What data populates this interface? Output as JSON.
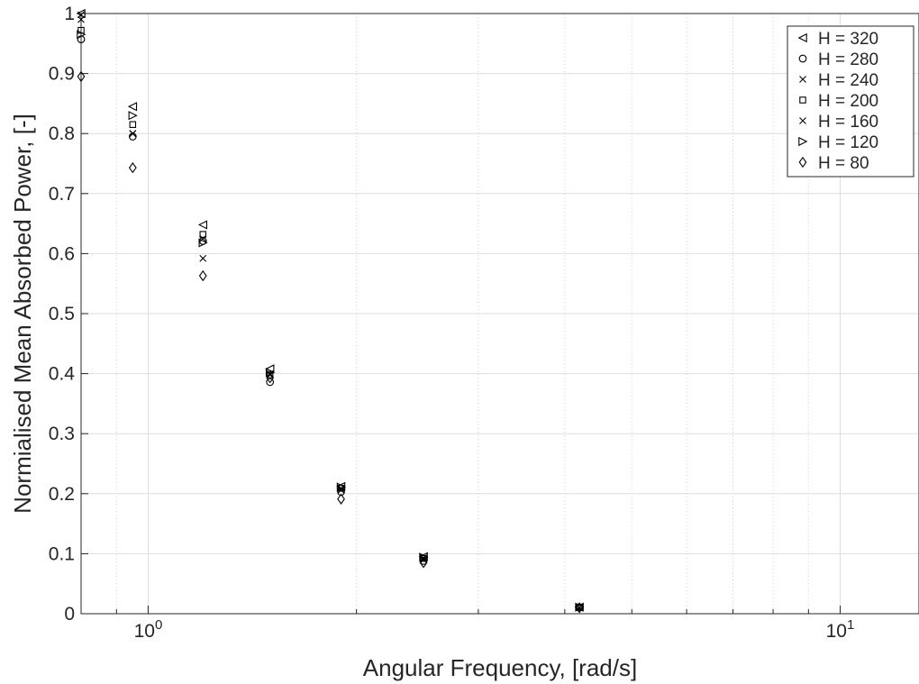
{
  "chart_data": {
    "type": "scatter",
    "title": "",
    "xlabel": "Angular Frequency, [rad/s]",
    "ylabel": "Normialised Mean Absorbed Power, [-]",
    "xscale": "log",
    "xlim": [
      0.8,
      13.0
    ],
    "ylim": [
      0,
      1
    ],
    "grid": true,
    "legend_position": "top-right",
    "x_ticks": [
      {
        "value": 1,
        "base": "10",
        "exp": "0"
      },
      {
        "value": 10,
        "base": "10",
        "exp": "1"
      }
    ],
    "y_ticks": [
      {
        "value": 0,
        "label": "0"
      },
      {
        "value": 0.1,
        "label": "0.1"
      },
      {
        "value": 0.2,
        "label": "0.2"
      },
      {
        "value": 0.3,
        "label": "0.3"
      },
      {
        "value": 0.4,
        "label": "0.4"
      },
      {
        "value": 0.5,
        "label": "0.5"
      },
      {
        "value": 0.6,
        "label": "0.6"
      },
      {
        "value": 0.7,
        "label": "0.7"
      },
      {
        "value": 0.8,
        "label": "0.8"
      },
      {
        "value": 0.9,
        "label": "0.9"
      },
      {
        "value": 1,
        "label": "1"
      }
    ],
    "x": [
      0.8,
      0.95,
      1.2,
      1.5,
      1.9,
      2.5,
      4.2
    ],
    "series": [
      {
        "name": "H = 320",
        "marker": "triangle-left",
        "values": [
          1.0,
          0.845,
          0.648,
          0.408,
          0.212,
          0.095,
          0.011
        ]
      },
      {
        "name": "H = 280",
        "marker": "circle",
        "values": [
          0.957,
          0.795,
          0.621,
          0.386,
          0.203,
          0.088,
          0.01
        ]
      },
      {
        "name": "H = 240",
        "marker": "x",
        "values": [
          0.99,
          0.8,
          0.592,
          0.398,
          0.206,
          0.09,
          0.01
        ]
      },
      {
        "name": "H = 200",
        "marker": "square",
        "values": [
          0.972,
          0.815,
          0.632,
          0.398,
          0.209,
          0.092,
          0.011
        ]
      },
      {
        "name": "H = 160",
        "marker": "x",
        "values": [
          0.998,
          0.8,
          0.625,
          0.4,
          0.209,
          0.093,
          0.01
        ]
      },
      {
        "name": "H = 120",
        "marker": "triangle-right",
        "values": [
          0.965,
          0.83,
          0.618,
          0.402,
          0.211,
          0.094,
          0.011
        ]
      },
      {
        "name": "H = 80",
        "marker": "diamond",
        "values": [
          0.895,
          0.743,
          0.563,
          0.393,
          0.191,
          0.085,
          0.01
        ]
      }
    ]
  }
}
